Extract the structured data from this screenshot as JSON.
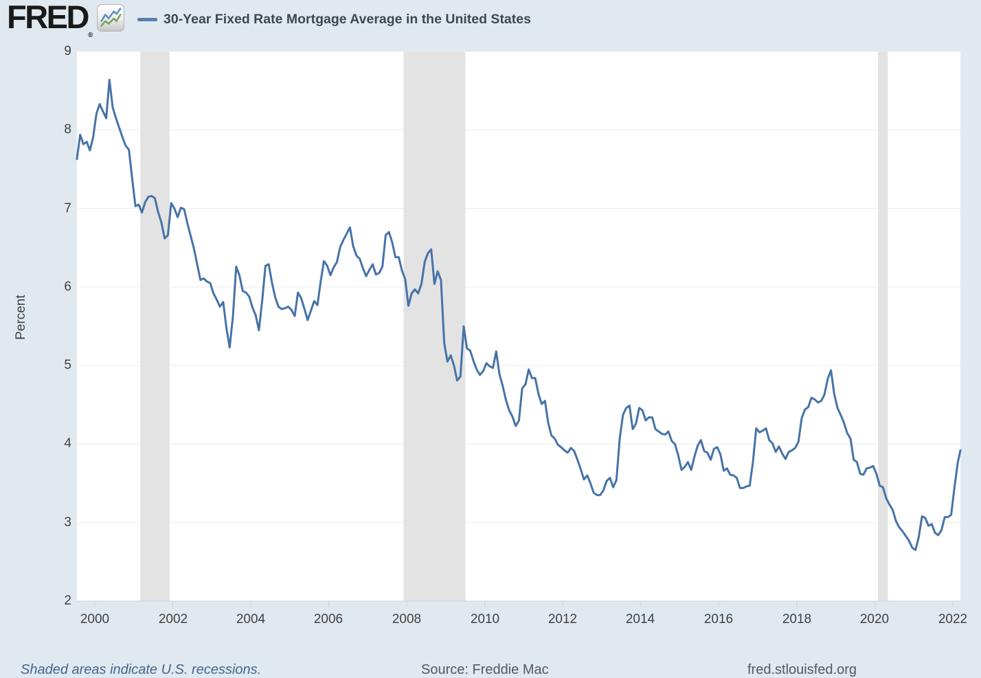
{
  "header": {
    "logo": "FRED",
    "registered": "®",
    "series_title": "30-Year Fixed Rate Mortgage Average in the United States"
  },
  "axes": {
    "y_label": "Percent",
    "y_ticks": [
      "9",
      "8",
      "7",
      "6",
      "5",
      "4",
      "3",
      "2"
    ],
    "x_ticks": [
      "2000",
      "2002",
      "2004",
      "2006",
      "2008",
      "2010",
      "2012",
      "2014",
      "2016",
      "2018",
      "2020",
      "2022"
    ]
  },
  "footer": {
    "recessions_note": "Shaded areas indicate U.S. recessions.",
    "source": "Source: Freddie Mac",
    "site": "fred.stlouisfed.org"
  },
  "colors": {
    "background": "#e1e9f0",
    "plot_bg": "#ffffff",
    "series": "#4573a7",
    "legend_dash": "#5b7fa9",
    "recession_band": "#e3e3e3",
    "gridline": "#ebebeb",
    "axis_line": "#cfd2d6",
    "tick_text": "#404040",
    "title_text": "#3d4852",
    "footer_link": "#44658c",
    "footer_text": "#54585c"
  },
  "chart_data": {
    "type": "line",
    "title": "30-Year Fixed Rate Mortgage Average in the United States",
    "ylabel": "Percent",
    "unit": "percent",
    "frequency": "monthly",
    "start": "1999-07",
    "end": "2022-03",
    "ylim": [
      2,
      9
    ],
    "xlim_years": [
      1999.54,
      2022.21
    ],
    "grid": "horizontal-only",
    "legend_position": "top-left",
    "x_tick_years": [
      2000,
      2002,
      2004,
      2006,
      2008,
      2010,
      2012,
      2014,
      2016,
      2018,
      2020,
      2022
    ],
    "recession_bands": [
      [
        "2001-03",
        "2001-11"
      ],
      [
        "2007-12",
        "2009-06"
      ],
      [
        "2020-02",
        "2020-04"
      ]
    ],
    "values": [
      7.63,
      7.94,
      7.82,
      7.85,
      7.74,
      7.91,
      8.21,
      8.33,
      8.24,
      8.15,
      8.64,
      8.29,
      8.15,
      8.03,
      7.91,
      7.8,
      7.75,
      7.38,
      7.03,
      7.05,
      6.95,
      7.08,
      7.15,
      7.16,
      7.13,
      6.95,
      6.82,
      6.62,
      6.66,
      7.07,
      7.0,
      6.89,
      7.01,
      6.99,
      6.81,
      6.65,
      6.49,
      6.29,
      6.09,
      6.11,
      6.07,
      6.05,
      5.92,
      5.84,
      5.75,
      5.81,
      5.48,
      5.23,
      5.63,
      6.26,
      6.15,
      5.95,
      5.93,
      5.88,
      5.74,
      5.64,
      5.45,
      5.83,
      6.27,
      6.29,
      6.06,
      5.87,
      5.75,
      5.72,
      5.73,
      5.75,
      5.71,
      5.63,
      5.93,
      5.86,
      5.72,
      5.58,
      5.7,
      5.82,
      5.77,
      6.07,
      6.33,
      6.27,
      6.15,
      6.25,
      6.32,
      6.51,
      6.6,
      6.68,
      6.76,
      6.52,
      6.4,
      6.36,
      6.24,
      6.14,
      6.22,
      6.29,
      6.16,
      6.18,
      6.26,
      6.66,
      6.7,
      6.57,
      6.38,
      6.38,
      6.21,
      6.1,
      5.76,
      5.92,
      5.97,
      5.92,
      6.04,
      6.32,
      6.43,
      6.48,
      6.04,
      6.2,
      6.09,
      5.29,
      5.05,
      5.13,
      5.0,
      4.81,
      4.86,
      5.5,
      5.22,
      5.19,
      5.06,
      4.95,
      4.88,
      4.93,
      5.03,
      4.99,
      4.97,
      5.18,
      4.89,
      4.74,
      4.56,
      4.43,
      4.35,
      4.23,
      4.3,
      4.71,
      4.76,
      4.95,
      4.84,
      4.84,
      4.64,
      4.51,
      4.55,
      4.27,
      4.11,
      4.07,
      3.99,
      3.96,
      3.92,
      3.89,
      3.95,
      3.91,
      3.8,
      3.68,
      3.55,
      3.6,
      3.5,
      3.38,
      3.35,
      3.35,
      3.41,
      3.53,
      3.57,
      3.45,
      3.54,
      4.07,
      4.37,
      4.46,
      4.49,
      4.19,
      4.26,
      4.46,
      4.43,
      4.3,
      4.34,
      4.34,
      4.19,
      4.16,
      4.13,
      4.12,
      4.16,
      4.04,
      4.0,
      3.86,
      3.67,
      3.71,
      3.77,
      3.67,
      3.84,
      3.98,
      4.05,
      3.91,
      3.89,
      3.8,
      3.94,
      3.96,
      3.87,
      3.66,
      3.69,
      3.61,
      3.6,
      3.57,
      3.44,
      3.44,
      3.46,
      3.47,
      3.77,
      4.2,
      4.15,
      4.17,
      4.2,
      4.05,
      4.01,
      3.9,
      3.97,
      3.88,
      3.81,
      3.9,
      3.92,
      3.95,
      4.03,
      4.33,
      4.44,
      4.47,
      4.59,
      4.57,
      4.53,
      4.55,
      4.63,
      4.83,
      4.94,
      4.64,
      4.46,
      4.37,
      4.27,
      4.14,
      4.07,
      3.8,
      3.77,
      3.62,
      3.61,
      3.69,
      3.7,
      3.72,
      3.62,
      3.47,
      3.45,
      3.31,
      3.23,
      3.16,
      3.02,
      2.94,
      2.89,
      2.83,
      2.77,
      2.68,
      2.65,
      2.81,
      3.08,
      3.06,
      2.96,
      2.98,
      2.87,
      2.84,
      2.9,
      3.07,
      3.07,
      3.1,
      3.45,
      3.76,
      3.92
    ]
  }
}
